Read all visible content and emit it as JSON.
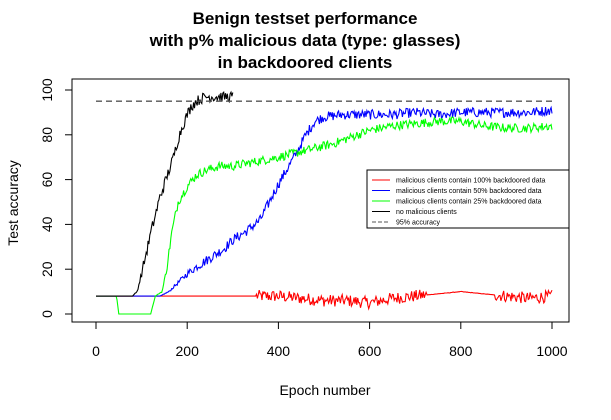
{
  "chart_data": {
    "type": "line",
    "title_lines": [
      "Benign testset performance",
      "with p% malicious data (type: glasses)",
      "in backdoored clients"
    ],
    "xlabel": "Epoch number",
    "ylabel": "Test accuracy",
    "xlim": [
      0,
      1000
    ],
    "ylim": [
      0,
      100
    ],
    "xticks": [
      0,
      200,
      400,
      600,
      800,
      1000
    ],
    "yticks": [
      0,
      20,
      40,
      60,
      80,
      100
    ],
    "grid": false,
    "legend_placement": "right",
    "reference_line": {
      "y": 95,
      "style": "dashed",
      "color": "#555555"
    },
    "series": [
      {
        "name": "malicious clients contain 100% backdoored data",
        "color": "#ff0000",
        "points": [
          [
            0,
            8
          ],
          [
            100,
            8
          ],
          [
            120,
            8
          ],
          [
            140,
            8
          ],
          [
            200,
            8
          ],
          [
            250,
            8
          ],
          [
            300,
            8
          ],
          [
            350,
            8
          ],
          [
            400,
            8
          ],
          [
            450,
            7
          ],
          [
            500,
            6
          ],
          [
            550,
            6
          ],
          [
            600,
            5
          ],
          [
            650,
            7
          ],
          [
            700,
            8
          ],
          [
            750,
            9
          ],
          [
            800,
            10
          ],
          [
            850,
            9
          ],
          [
            900,
            8
          ],
          [
            950,
            7
          ],
          [
            1000,
            8
          ]
        ]
      },
      {
        "name": "malicious clients contain 50% backdoored data",
        "color": "#0000ff",
        "points": [
          [
            0,
            8
          ],
          [
            100,
            8
          ],
          [
            140,
            8
          ],
          [
            160,
            10
          ],
          [
            180,
            14
          ],
          [
            200,
            18
          ],
          [
            220,
            21
          ],
          [
            250,
            25
          ],
          [
            280,
            29
          ],
          [
            300,
            33
          ],
          [
            330,
            37
          ],
          [
            360,
            42
          ],
          [
            380,
            50
          ],
          [
            400,
            58
          ],
          [
            420,
            65
          ],
          [
            440,
            72
          ],
          [
            460,
            80
          ],
          [
            480,
            86
          ],
          [
            500,
            88
          ],
          [
            540,
            89
          ],
          [
            580,
            89
          ],
          [
            600,
            89
          ],
          [
            650,
            89
          ],
          [
            700,
            90
          ],
          [
            750,
            89
          ],
          [
            800,
            90
          ],
          [
            850,
            90
          ],
          [
            900,
            90
          ],
          [
            950,
            90
          ],
          [
            1000,
            91
          ]
        ]
      },
      {
        "name": "malicious clients contain 25% backdoored data",
        "color": "#00ff00",
        "points": [
          [
            0,
            8
          ],
          [
            45,
            8
          ],
          [
            50,
            0
          ],
          [
            120,
            0
          ],
          [
            130,
            8
          ],
          [
            145,
            10
          ],
          [
            155,
            20
          ],
          [
            165,
            35
          ],
          [
            180,
            50
          ],
          [
            200,
            57
          ],
          [
            220,
            62
          ],
          [
            240,
            64
          ],
          [
            270,
            66
          ],
          [
            300,
            66
          ],
          [
            350,
            68
          ],
          [
            400,
            70
          ],
          [
            440,
            72
          ],
          [
            480,
            74
          ],
          [
            520,
            76
          ],
          [
            560,
            79
          ],
          [
            600,
            82
          ],
          [
            650,
            84
          ],
          [
            700,
            85
          ],
          [
            750,
            86
          ],
          [
            800,
            86
          ],
          [
            850,
            84
          ],
          [
            900,
            83
          ],
          [
            950,
            83
          ],
          [
            1000,
            84
          ]
        ]
      },
      {
        "name": "no malicious clients",
        "color": "#000000",
        "points": [
          [
            0,
            8
          ],
          [
            80,
            8
          ],
          [
            90,
            10
          ],
          [
            100,
            18
          ],
          [
            110,
            27
          ],
          [
            120,
            36
          ],
          [
            130,
            44
          ],
          [
            140,
            52
          ],
          [
            150,
            58
          ],
          [
            160,
            64
          ],
          [
            170,
            70
          ],
          [
            180,
            78
          ],
          [
            190,
            84
          ],
          [
            200,
            89
          ],
          [
            210,
            93
          ],
          [
            220,
            95
          ],
          [
            230,
            96
          ],
          [
            240,
            97
          ],
          [
            250,
            97
          ],
          [
            260,
            97
          ],
          [
            270,
            97
          ],
          [
            280,
            97
          ],
          [
            290,
            97
          ],
          [
            300,
            97
          ]
        ]
      },
      {
        "name": "95% accuracy",
        "color": "#555555",
        "dashed": true,
        "points": [
          [
            0,
            95
          ],
          [
            1000,
            95
          ]
        ]
      }
    ]
  }
}
